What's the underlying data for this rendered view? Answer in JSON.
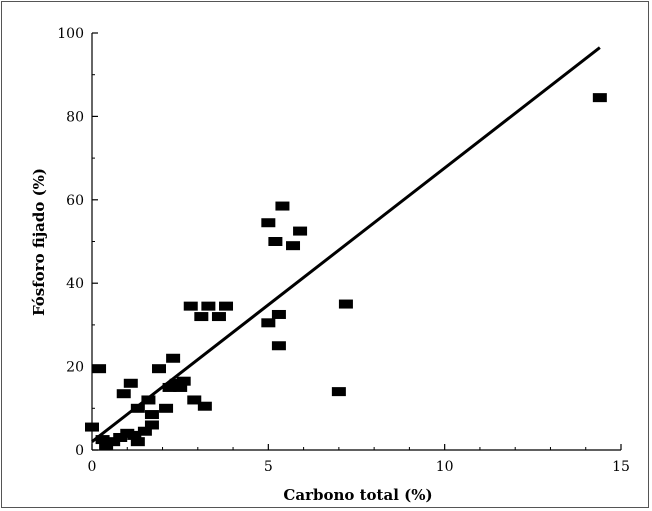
{
  "chart_data": {
    "type": "scatter",
    "title": "",
    "xlabel": "Carbono total (%)",
    "ylabel": "Fósforo fijado (%)",
    "xlim": [
      0,
      15
    ],
    "ylim": [
      0,
      100
    ],
    "xticks": [
      0,
      5,
      10,
      15
    ],
    "yticks": [
      0,
      20,
      40,
      60,
      80,
      100
    ],
    "grid": false,
    "marker": "filled-rectangle",
    "color": "#000000",
    "points": [
      {
        "x": 0.0,
        "y": 5.5
      },
      {
        "x": 0.2,
        "y": 19.5
      },
      {
        "x": 0.3,
        "y": 2.5
      },
      {
        "x": 0.4,
        "y": 1.0
      },
      {
        "x": 0.6,
        "y": 2.0
      },
      {
        "x": 0.8,
        "y": 3.0
      },
      {
        "x": 0.9,
        "y": 13.5
      },
      {
        "x": 1.0,
        "y": 4.0
      },
      {
        "x": 1.1,
        "y": 16.0
      },
      {
        "x": 1.2,
        "y": 3.5
      },
      {
        "x": 1.3,
        "y": 10.0
      },
      {
        "x": 1.3,
        "y": 2.0
      },
      {
        "x": 1.5,
        "y": 4.5
      },
      {
        "x": 1.6,
        "y": 12.0
      },
      {
        "x": 1.7,
        "y": 6.0
      },
      {
        "x": 1.7,
        "y": 8.5
      },
      {
        "x": 1.9,
        "y": 19.5
      },
      {
        "x": 2.1,
        "y": 10.0
      },
      {
        "x": 2.2,
        "y": 15.0
      },
      {
        "x": 2.3,
        "y": 22.0
      },
      {
        "x": 2.4,
        "y": 16.0
      },
      {
        "x": 2.5,
        "y": 15.0
      },
      {
        "x": 2.6,
        "y": 16.5
      },
      {
        "x": 2.8,
        "y": 34.5
      },
      {
        "x": 2.9,
        "y": 12.0
      },
      {
        "x": 3.1,
        "y": 32.0
      },
      {
        "x": 3.2,
        "y": 10.5
      },
      {
        "x": 3.3,
        "y": 34.5
      },
      {
        "x": 3.6,
        "y": 32.0
      },
      {
        "x": 3.8,
        "y": 34.5
      },
      {
        "x": 5.0,
        "y": 54.5
      },
      {
        "x": 5.0,
        "y": 30.5
      },
      {
        "x": 5.2,
        "y": 50.0
      },
      {
        "x": 5.3,
        "y": 32.5
      },
      {
        "x": 5.3,
        "y": 25.0
      },
      {
        "x": 5.4,
        "y": 58.5
      },
      {
        "x": 5.7,
        "y": 49.0
      },
      {
        "x": 5.9,
        "y": 52.5
      },
      {
        "x": 7.0,
        "y": 14.0
      },
      {
        "x": 7.2,
        "y": 35.0
      },
      {
        "x": 14.4,
        "y": 84.5
      }
    ],
    "trendline": {
      "x": [
        0.0,
        14.4
      ],
      "y": [
        2.0,
        96.5
      ]
    }
  }
}
